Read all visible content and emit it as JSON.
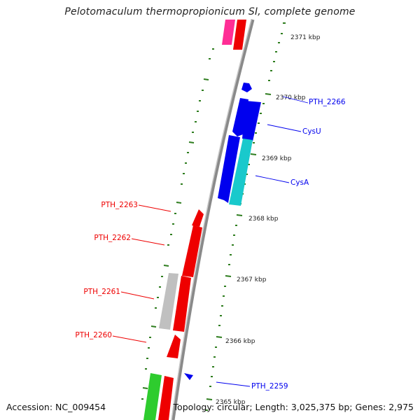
{
  "title": "Pelotomaculum thermopropionicum SI, complete genome",
  "footer": {
    "accession_label": "Accession:",
    "accession": "NC_009454",
    "topology_label": "Topology:",
    "topology": "circular",
    "length_label": "Length:",
    "length": "3,025,375 bp",
    "genes_label": "Genes:",
    "genes": "2,975"
  },
  "colors": {
    "forward_strand": "#0000ee",
    "reverse_strand": "#ee0000",
    "backbone": "#888888",
    "tick": "#2e7d1e",
    "other_gene_pink": "#ff2d95",
    "other_gene_cyan": "#19c9cc",
    "other_gene_gray": "#c0c0c0",
    "other_gene_green": "#2ecc2e"
  },
  "kbp_ticks": [
    "2371 kbp",
    "2370 kbp",
    "2369 kbp",
    "2368 kbp",
    "2367 kbp",
    "2366 kbp",
    "2365 kbp"
  ],
  "gene_labels": {
    "right": [
      "PTH_2266",
      "CysU",
      "CysA",
      "PTH_2259"
    ],
    "left": [
      "PTH_2263",
      "PTH_2262",
      "PTH_2261",
      "PTH_2260"
    ]
  }
}
